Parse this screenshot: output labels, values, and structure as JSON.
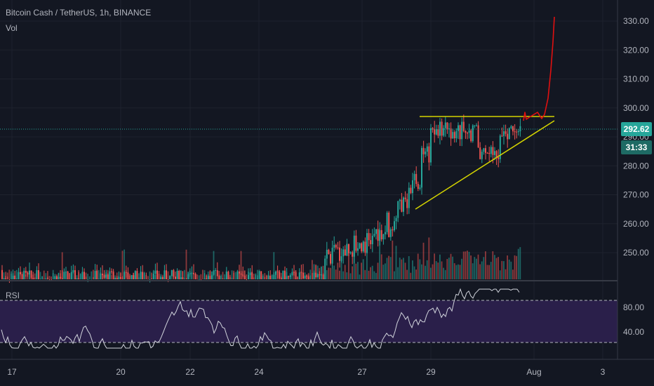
{
  "header": {
    "title": "Bitcoin Cash / TetherUS, 1h, BINANCE",
    "volume_label": "Vol",
    "rsi_label": "RSI"
  },
  "badges": {
    "last_price": "292.62",
    "countdown": "31:33"
  },
  "colors": {
    "background": "#131722",
    "up": "#26a69a",
    "down": "#ef5350",
    "trendline": "#d4d400",
    "annotation": "#e01010",
    "rsi_line": "#d1d4dc",
    "rsi_band": "#2a1f4a"
  },
  "chart_data": {
    "type": "candlestick",
    "symbol": "Bitcoin Cash / TetherUS",
    "interval": "1h",
    "exchange": "BINANCE",
    "price_axis": [
      "330.00",
      "320.00",
      "310.00",
      "300.00",
      "290.00",
      "280.00",
      "270.00",
      "260.00",
      "250.00"
    ],
    "price_ylim": [
      242,
      334
    ],
    "last_price": 292.62,
    "time_axis": [
      "17",
      "20",
      "22",
      "24",
      "27",
      "29",
      "Aug",
      "3"
    ],
    "price_segments": [
      {
        "start": "17",
        "end": "26",
        "low": 242,
        "high": 250,
        "note": "flat / below visible range"
      },
      {
        "start": "26",
        "end": "27",
        "from": 250,
        "to": 262
      },
      {
        "start": "27",
        "end": "28",
        "from": 262,
        "to": 278
      },
      {
        "start": "28",
        "end": "29",
        "from": 278,
        "to": 297
      },
      {
        "start": "29",
        "end": "31",
        "from": 297,
        "to": 292.62,
        "range": [
          281,
          300
        ]
      }
    ],
    "annotations": [
      {
        "type": "horizontal_line",
        "price": 296.5,
        "from": "28.9",
        "to": "Aug+0.3"
      },
      {
        "type": "trendline",
        "from": {
          "time": "28.9",
          "price": 265
        },
        "to": {
          "time": "Aug+0.3",
          "price": 295
        }
      },
      {
        "type": "freehand_arrow",
        "description": "red drawn path upward",
        "to_price": 331
      }
    ],
    "rsi": {
      "axis": [
        "80.00",
        "40.00"
      ],
      "ylim": [
        15,
        85
      ],
      "upper_band": 70,
      "lower_band": 30
    }
  }
}
